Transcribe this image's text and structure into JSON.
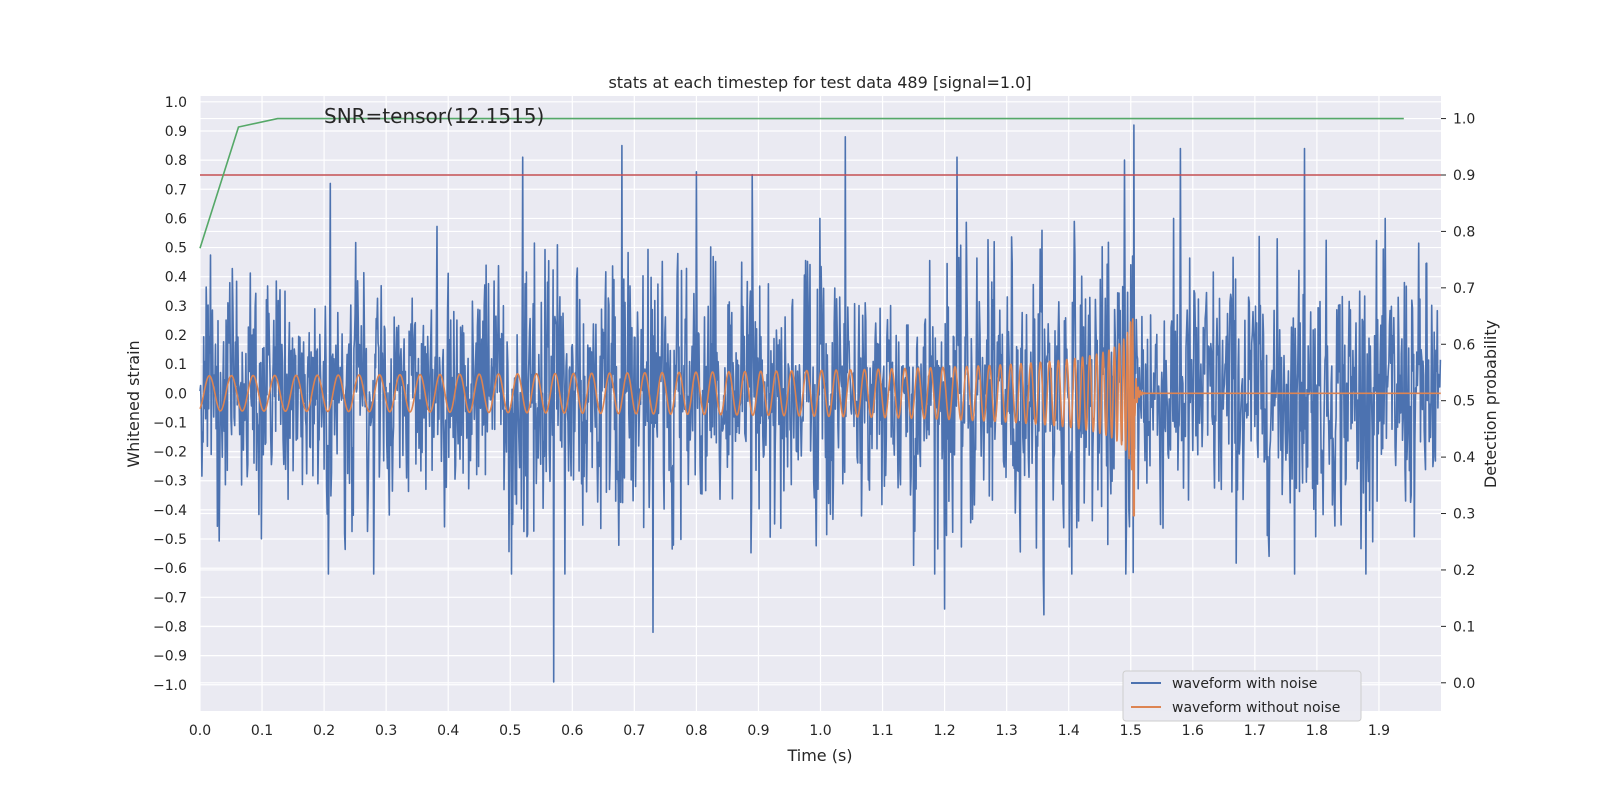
{
  "chart_data": {
    "type": "line",
    "title": "stats at each timestep for test data 489 [signal=1.0]",
    "xlabel": "Time (s)",
    "ylabel": "Whitened strain",
    "y2label": "Detection probability",
    "annotation": "SNR=tensor(12.1515)",
    "xlim": [
      0.0,
      2.0
    ],
    "ylim": [
      -1.09,
      1.02
    ],
    "y2lim": [
      -0.05,
      1.04
    ],
    "xticks": [
      "0.0",
      "0.1",
      "0.2",
      "0.3",
      "0.4",
      "0.5",
      "0.6",
      "0.7",
      "0.8",
      "0.9",
      "1.0",
      "1.1",
      "1.2",
      "1.3",
      "1.4",
      "1.5",
      "1.6",
      "1.7",
      "1.8",
      "1.9"
    ],
    "yticks": [
      "1.0",
      "0.9",
      "0.8",
      "0.7",
      "0.6",
      "0.5",
      "0.4",
      "0.3",
      "0.2",
      "0.1",
      "0.0",
      "−0.1",
      "−0.2",
      "−0.3",
      "−0.4",
      "−0.5",
      "−0.6",
      "−0.7",
      "−0.8",
      "−0.9",
      "−1.0"
    ],
    "y2ticks": [
      "1.0",
      "0.9",
      "0.8",
      "0.7",
      "0.6",
      "0.5",
      "0.4",
      "0.3",
      "0.2",
      "0.1",
      "0.0"
    ],
    "legend": {
      "position": "lower-right",
      "entries": [
        "waveform with noise",
        "waveform without noise"
      ]
    },
    "series": [
      {
        "name": "waveform with noise",
        "color": "#4c72b0",
        "description": "noisy whitened strain, amplitude mostly within ±0.5 with spikes to ±0.9",
        "noise_std": 0.22,
        "peaks": [
          [
            0.21,
            0.72
          ],
          [
            0.52,
            0.81
          ],
          [
            0.57,
            0.74
          ],
          [
            0.57,
            -0.99
          ],
          [
            0.68,
            0.85
          ],
          [
            0.73,
            -0.82
          ],
          [
            0.8,
            0.76
          ],
          [
            0.89,
            0.75
          ],
          [
            1.04,
            0.88
          ],
          [
            1.2,
            -0.74
          ],
          [
            1.22,
            0.81
          ],
          [
            1.36,
            -0.76
          ],
          [
            1.49,
            0.8
          ],
          [
            1.505,
            0.92
          ],
          [
            1.58,
            0.84
          ],
          [
            1.78,
            0.84
          ],
          [
            1.15,
            -0.59
          ]
        ]
      },
      {
        "name": "waveform without noise",
        "color": "#dd8452",
        "description": "chirp signal, amplitude and frequency increase until merger near 1.505 s",
        "merger_time": 1.505,
        "start_amplitude": 0.06,
        "peak_amplitude": 0.3,
        "min_value": -0.42,
        "start_frequency_hz": 28
      },
      {
        "name": "detection probability",
        "axis": "right",
        "color": "#55a868",
        "x": [
          0.0,
          0.062,
          0.125,
          1.94
        ],
        "y": [
          0.77,
          0.985,
          1.0,
          1.0
        ]
      },
      {
        "name": "threshold",
        "axis": "right",
        "color": "#c44e52",
        "value": 0.9
      }
    ]
  }
}
